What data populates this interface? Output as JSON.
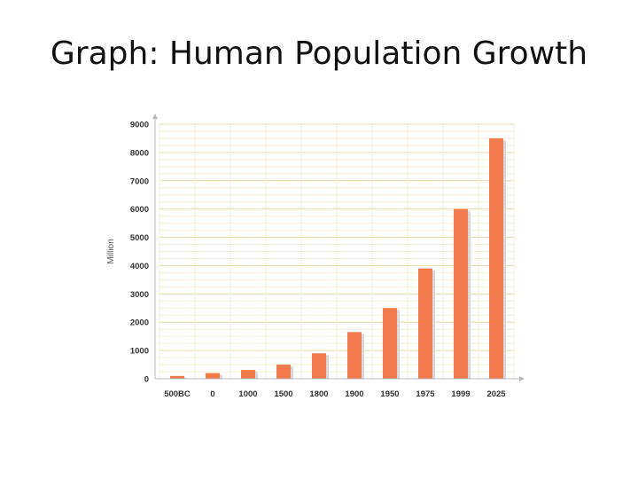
{
  "slide": {
    "title": "Graph: Human Population Growth"
  },
  "chart_data": {
    "type": "bar",
    "title": "",
    "xlabel": "",
    "ylabel": "Million",
    "categories": [
      "500BC",
      "0",
      "1000",
      "1500",
      "1800",
      "1900",
      "1950",
      "1975",
      "1999",
      "2025"
    ],
    "values": [
      100,
      200,
      310,
      500,
      900,
      1650,
      2500,
      3900,
      6000,
      8500
    ],
    "ylim": [
      0,
      9000
    ],
    "yticks": [
      0,
      1000,
      2000,
      3000,
      4000,
      5000,
      6000,
      7000,
      8000,
      9000
    ],
    "grid": true,
    "legend": "none",
    "colors": {
      "bar": "#f07a4b",
      "bar_shadow": "#d9d9d9",
      "grid_major": "#e9dcb0",
      "grid_minor": "#f6eed6",
      "axis": "#b8b8b8"
    }
  }
}
